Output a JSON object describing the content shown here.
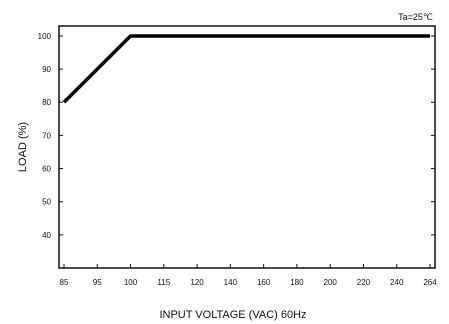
{
  "chart_data": {
    "type": "line",
    "title": "",
    "annotation": "Ta=25℃",
    "xlabel": "INPUT VOLTAGE (VAC) 60Hz",
    "ylabel": "LOAD (%)",
    "x_tick_labels": [
      "85",
      "95",
      "100",
      "115",
      "120",
      "140",
      "160",
      "180",
      "200",
      "220",
      "240",
      "264"
    ],
    "y_tick_labels": [
      "40",
      "50",
      "60",
      "70",
      "80",
      "90",
      "100"
    ],
    "ylim": [
      30,
      103
    ],
    "grid": false,
    "series": [
      {
        "x": [
          "85",
          "100",
          "264"
        ],
        "y": [
          80,
          100,
          100
        ]
      }
    ]
  }
}
